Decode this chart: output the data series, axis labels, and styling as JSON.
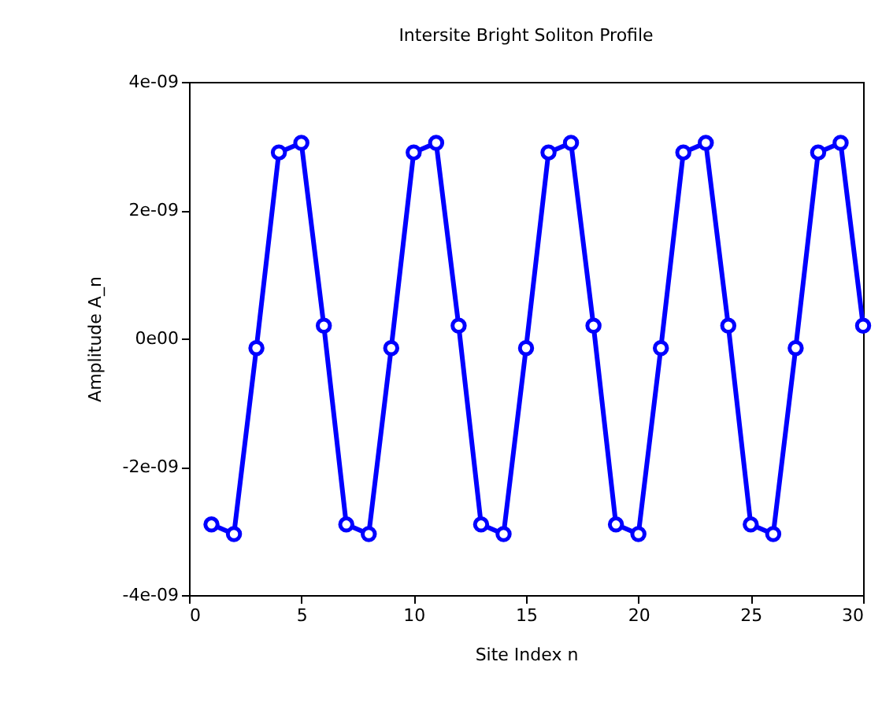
{
  "chart_data": {
    "type": "line",
    "title": "Intersite Bright Soliton Profile",
    "xlabel": "Site Index n",
    "ylabel": "Amplitude A_n",
    "x": [
      1,
      2,
      3,
      4,
      5,
      6,
      7,
      8,
      9,
      10,
      11,
      12,
      13,
      14,
      15,
      16,
      17,
      18,
      19,
      20,
      21,
      22,
      23,
      24,
      25,
      26,
      27,
      28,
      29,
      30
    ],
    "series": [
      {
        "color": "#0000ff",
        "values": [
          -2.9e-09,
          -3.05e-09,
          -1.5e-10,
          2.9e-09,
          3.05e-09,
          2e-10,
          -2.9e-09,
          -3.05e-09,
          -1.5e-10,
          2.9e-09,
          3.05e-09,
          2e-10,
          -2.9e-09,
          -3.05e-09,
          -1.5e-10,
          2.9e-09,
          3.05e-09,
          2e-10,
          -2.9e-09,
          -3.05e-09,
          -1.5e-10,
          2.9e-09,
          3.05e-09,
          2e-10,
          -2.9e-09,
          -3.05e-09,
          -1.5e-10,
          2.9e-09,
          3.05e-09,
          2e-10
        ]
      }
    ],
    "xlim": [
      0,
      30
    ],
    "xticks": [
      0,
      5,
      10,
      15,
      20,
      25,
      30
    ],
    "ylim": [
      -4e-09,
      4e-09
    ],
    "yticks": [
      {
        "value": -4e-09,
        "label": "-4e-09"
      },
      {
        "value": -2e-09,
        "label": "-2e-09"
      },
      {
        "value": 0,
        "label": "0e00"
      },
      {
        "value": 2e-09,
        "label": "2e-09"
      },
      {
        "value": 4e-09,
        "label": "4e-09"
      }
    ],
    "marker": "circle",
    "line_style": "solid",
    "grid": false,
    "legend": false
  }
}
